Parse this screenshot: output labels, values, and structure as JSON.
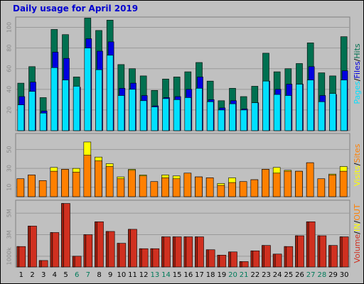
{
  "colors": {
    "background": "#c0c0c0",
    "hits": "#007050",
    "files": "#0000e0",
    "pages": "#00e0ff",
    "visits": "#ffff00",
    "sites": "#ff8000",
    "kbytes": "#d03020",
    "kbytes_dark": "#a02010",
    "legend_separator": "#000000",
    "weekend_label": "#007a5a",
    "title": "#0000d0"
  },
  "chart_data": [
    {
      "type": "bar",
      "title": "Daily usage for April 2019",
      "xlabel": "",
      "ylabel": "",
      "categories": [
        "1",
        "2",
        "3",
        "4",
        "5",
        "6",
        "7",
        "8",
        "9",
        "10",
        "11",
        "12",
        "13",
        "14",
        "15",
        "16",
        "17",
        "18",
        "19",
        "20",
        "21",
        "22",
        "23",
        "24",
        "25",
        "26",
        "27",
        "28",
        "29",
        "30"
      ],
      "weekend_days": [
        "6",
        "7",
        "13",
        "14",
        "20",
        "21",
        "27",
        "28"
      ],
      "legend": [
        "Pages",
        "Files",
        "Hits"
      ],
      "legend_separator": "/",
      "ylim": [
        0,
        110
      ],
      "yticks": [
        20,
        40,
        60,
        80,
        100
      ],
      "grid": true,
      "series": [
        {
          "name": "Hits",
          "values": [
            46,
            62,
            32,
            98,
            93,
            52,
            109,
            97,
            107,
            64,
            60,
            53,
            39,
            50,
            52,
            57,
            66,
            48,
            29,
            41,
            33,
            43,
            75,
            57,
            60,
            65,
            85,
            56,
            53,
            91
          ]
        },
        {
          "name": "Files",
          "values": [
            33,
            47,
            19,
            76,
            70,
            42,
            89,
            77,
            86,
            41,
            46,
            34,
            24,
            32,
            33,
            40,
            52,
            30,
            22,
            29,
            21,
            27,
            48,
            40,
            45,
            45,
            62,
            34,
            35,
            58
          ]
        },
        {
          "name": "Pages",
          "values": [
            25,
            38,
            17,
            61,
            49,
            43,
            80,
            59,
            73,
            34,
            40,
            29,
            23,
            31,
            30,
            32,
            41,
            28,
            20,
            26,
            20,
            27,
            48,
            35,
            34,
            45,
            49,
            28,
            36,
            49
          ]
        }
      ]
    },
    {
      "type": "bar",
      "title": "",
      "categories": [
        "1",
        "2",
        "3",
        "4",
        "5",
        "6",
        "7",
        "8",
        "9",
        "10",
        "11",
        "12",
        "13",
        "14",
        "15",
        "16",
        "17",
        "18",
        "19",
        "20",
        "21",
        "22",
        "23",
        "24",
        "25",
        "26",
        "27",
        "28",
        "29",
        "30"
      ],
      "legend": [
        "Visits",
        "Sites"
      ],
      "legend_separator": "/",
      "ylim": [
        0,
        67
      ],
      "yticks": [
        10,
        30,
        50
      ],
      "grid": true,
      "series": [
        {
          "name": "Visits",
          "values": [
            19,
            23,
            17,
            31,
            29,
            30,
            58,
            42,
            35,
            21,
            29,
            23,
            16,
            23,
            22,
            25,
            21,
            20,
            14,
            20,
            16,
            18,
            29,
            31,
            28,
            27,
            36,
            19,
            24,
            32
          ]
        },
        {
          "name": "Sites",
          "values": [
            19,
            23,
            17,
            27,
            29,
            26,
            44,
            38,
            32,
            19,
            28,
            22,
            16,
            20,
            19,
            25,
            21,
            20,
            12,
            15,
            16,
            18,
            29,
            25,
            27,
            27,
            36,
            19,
            23,
            27
          ]
        }
      ]
    },
    {
      "type": "bar",
      "title": "",
      "categories": [
        "1",
        "2",
        "3",
        "4",
        "5",
        "6",
        "7",
        "8",
        "9",
        "10",
        "11",
        "12",
        "13",
        "14",
        "15",
        "16",
        "17",
        "18",
        "19",
        "20",
        "21",
        "22",
        "23",
        "24",
        "25",
        "26",
        "27",
        "28",
        "29",
        "30"
      ],
      "legend": [
        "Volume",
        "IN",
        "OUT"
      ],
      "legend_separator": "/",
      "ylim": [
        0,
        6.2
      ],
      "yticks": [
        1,
        3,
        5
      ],
      "ytick_labels": [
        "1000k",
        "3M",
        "5M"
      ],
      "grid": true,
      "series": [
        {
          "name": "Volume",
          "values": [
            1.9,
            3.8,
            0.6,
            3.2,
            5.9,
            1.0,
            3.0,
            4.2,
            3.3,
            2.2,
            3.5,
            1.7,
            1.7,
            2.8,
            2.8,
            2.8,
            2.8,
            1.6,
            1.1,
            1.4,
            0.5,
            1.5,
            2.0,
            1.2,
            1.9,
            2.9,
            4.2,
            2.9,
            2.0,
            2.8
          ]
        }
      ]
    }
  ]
}
